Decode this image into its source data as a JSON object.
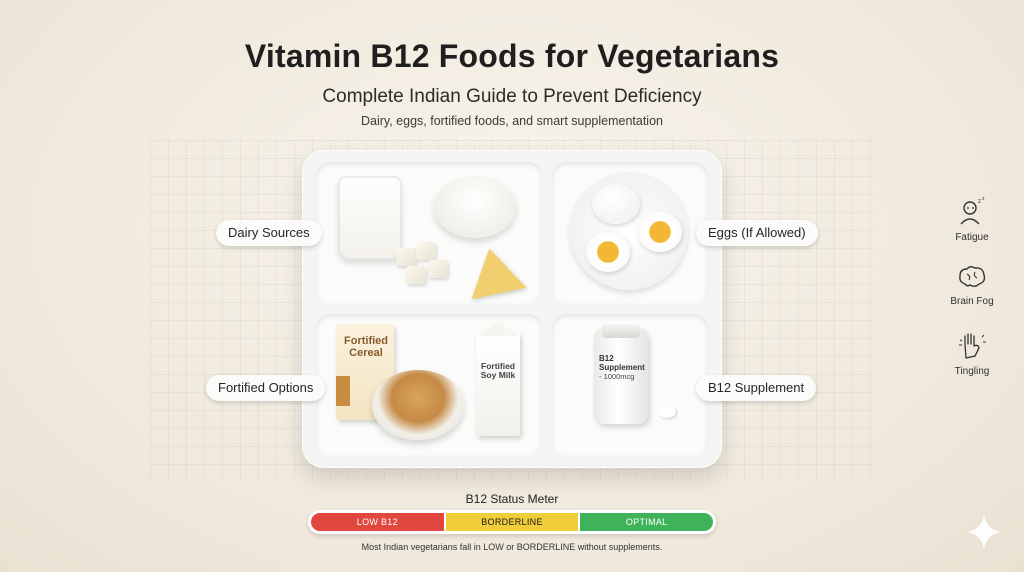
{
  "header": {
    "title": "Vitamin B12 Foods for Vegetarians",
    "subtitle": "Complete Indian Guide to Prevent Deficiency",
    "tagline": "Dairy, eggs, fortified foods, and smart supplementation"
  },
  "tray": {
    "labels": {
      "dairy": "Dairy Sources",
      "eggs": "Eggs (If Allowed)",
      "fortified": "Fortified Options",
      "supplement": "B12 Supplement"
    },
    "items": {
      "cereal_box_text": "Fortified Cereal",
      "soy_carton_line1": "Fortified",
      "soy_carton_line2": "Soy Milk",
      "bottle_line1": "B12",
      "bottle_line2": "Supplement",
      "bottle_dose": "- 1000mcg"
    }
  },
  "symptoms": [
    {
      "label": "Fatigue",
      "icon": "sleepy-person-icon"
    },
    {
      "label": "Brain Fog",
      "icon": "brain-icon"
    },
    {
      "label": "Tingling",
      "icon": "tingling-hand-icon"
    }
  ],
  "meter": {
    "title": "B12 Status Meter",
    "segments": [
      {
        "label": "LOW B12",
        "color": "#e0473f"
      },
      {
        "label": "BORDERLINE",
        "color": "#f0cd3a"
      },
      {
        "label": "OPTIMAL",
        "color": "#3fb35a"
      }
    ],
    "footnote": "Most Indian vegetarians fall in LOW or BORDERLINE without supplements."
  }
}
